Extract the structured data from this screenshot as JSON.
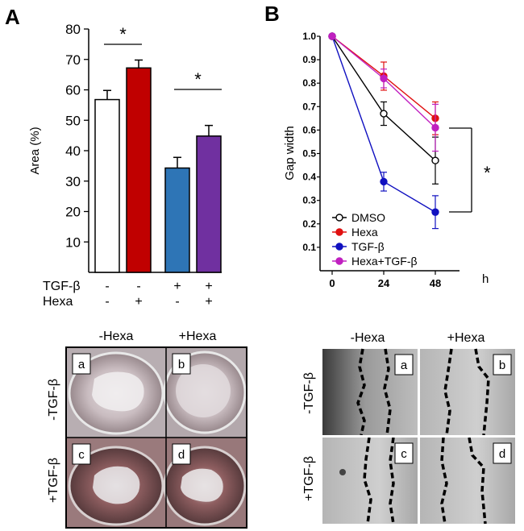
{
  "panels": [
    {
      "letter": "A"
    },
    {
      "letter": "B"
    }
  ],
  "chart_data": [
    {
      "type": "bar",
      "panel": "A",
      "ylabel": "Area (%)",
      "ylim": [
        0,
        80
      ],
      "yticks": [
        10,
        20,
        30,
        40,
        50,
        60,
        70,
        80
      ],
      "values": [
        56.8,
        67.2,
        34.3,
        44.8
      ],
      "errors": [
        3.0,
        2.6,
        3.5,
        3.5
      ],
      "colors": [
        "#ffffff",
        "#c00000",
        "#2e75b6",
        "#7030a0"
      ],
      "conditions": {
        "rows": [
          {
            "label": "TGF-β",
            "marks": [
              "-",
              "-",
              "+",
              "+"
            ]
          },
          {
            "label": "Hexa",
            "marks": [
              "-",
              "+",
              "-",
              "+"
            ]
          }
        ]
      },
      "significance": [
        {
          "bars": [
            0,
            1
          ],
          "label": "*"
        },
        {
          "bars": [
            2,
            3
          ],
          "label": "*"
        }
      ]
    },
    {
      "type": "line",
      "panel": "B",
      "ylabel": "Gap width",
      "xlabel": "h",
      "x": [
        0,
        24,
        48
      ],
      "xticks": [
        "0",
        "24",
        "48"
      ],
      "ylim": [
        0,
        1.0
      ],
      "yticks": [
        "0.1",
        "0.2",
        "0.3",
        "0.4",
        "0.5",
        "0.6",
        "0.7",
        "0.8",
        "0.9",
        "1.0"
      ],
      "series": [
        {
          "name": "DMSO",
          "values": [
            1.0,
            0.67,
            0.47
          ],
          "errors": [
            0,
            0.05,
            0.1
          ],
          "color": "#000000",
          "hollow": true
        },
        {
          "name": "Hexa",
          "values": [
            1.0,
            0.83,
            0.65
          ],
          "errors": [
            0,
            0.06,
            0.07
          ],
          "color": "#e01010",
          "hollow": false
        },
        {
          "name": "TGF-β",
          "values": [
            1.0,
            0.38,
            0.25
          ],
          "errors": [
            0,
            0.04,
            0.07
          ],
          "color": "#1010c0",
          "hollow": false
        },
        {
          "name": "Hexa+TGF-β",
          "values": [
            1.0,
            0.82,
            0.61
          ],
          "errors": [
            0,
            0.04,
            0.1
          ],
          "color": "#c020c0",
          "hollow": false
        }
      ],
      "significance": {
        "label": "*"
      }
    }
  ],
  "photos_left": {
    "col_headers": [
      "-Hexa",
      "+Hexa"
    ],
    "row_headers": [
      "-TGF-β",
      "+TGF-β"
    ],
    "tiles": [
      "a",
      "b",
      "c",
      "d"
    ]
  },
  "photos_right": {
    "col_headers": [
      "-Hexa",
      "+Hexa"
    ],
    "row_headers": [
      "-TGF-β",
      "+TGF-β"
    ],
    "tiles": [
      "a",
      "b",
      "c",
      "d"
    ]
  }
}
